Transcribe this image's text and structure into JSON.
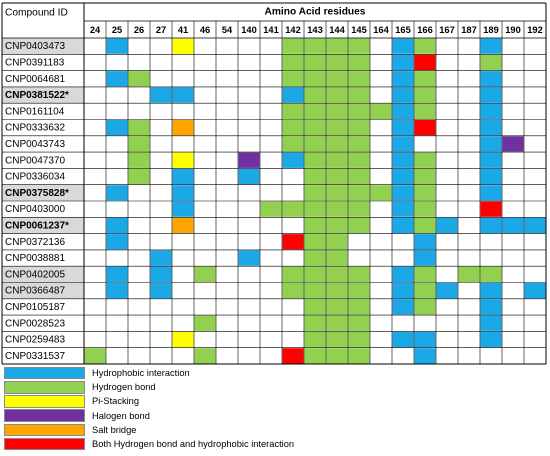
{
  "chart_data": {
    "type": "heatmap",
    "header": {
      "compound_col": "Compound ID",
      "residues_title": "Amino Acid residues"
    },
    "residues": [
      "24",
      "25",
      "26",
      "27",
      "41",
      "46",
      "54",
      "140",
      "141",
      "142",
      "143",
      "144",
      "145",
      "164",
      "165",
      "166",
      "167",
      "187",
      "189",
      "190",
      "192"
    ],
    "colors": {
      "H": "#1ba8e6",
      "G": "#92d050",
      "Y": "#ffff00",
      "P": "#7030a0",
      "O": "#ffa500",
      "R": "#ff0000"
    },
    "legend": [
      {
        "key": "H",
        "label": "Hydrophobic interaction"
      },
      {
        "key": "G",
        "label": "Hydrogen bond"
      },
      {
        "key": "Y",
        "label": "Pi-Stacking"
      },
      {
        "key": "P",
        "label": "Halogen bond"
      },
      {
        "key": "O",
        "label": "Salt bridge"
      },
      {
        "key": "R",
        "label": "Both Hydrogen bond and hydrophobic interaction"
      }
    ],
    "rows": [
      {
        "id": "CNP0403473",
        "bold": false,
        "shaded": true,
        "cells": [
          ".",
          "H",
          ".",
          ".",
          "Y",
          ".",
          ".",
          ".",
          ".",
          "G",
          "G",
          "G",
          "G",
          ".",
          "H",
          "G",
          ".",
          ".",
          "H",
          ".",
          "."
        ]
      },
      {
        "id": "CNP0391183",
        "bold": false,
        "shaded": false,
        "cells": [
          ".",
          ".",
          ".",
          ".",
          ".",
          ".",
          ".",
          ".",
          ".",
          "G",
          "G",
          "G",
          "G",
          ".",
          "H",
          "R",
          ".",
          ".",
          "G",
          ".",
          "."
        ]
      },
      {
        "id": "CNP0064681",
        "bold": false,
        "shaded": false,
        "cells": [
          ".",
          "H",
          "G",
          ".",
          ".",
          ".",
          ".",
          ".",
          ".",
          "G",
          "G",
          "G",
          "G",
          ".",
          "H",
          "G",
          ".",
          ".",
          "H",
          ".",
          "."
        ]
      },
      {
        "id": "CNP0381522*",
        "bold": true,
        "shaded": true,
        "cells": [
          ".",
          ".",
          ".",
          "H",
          "H",
          ".",
          ".",
          ".",
          ".",
          "H",
          "G",
          "G",
          "G",
          ".",
          "H",
          "G",
          ".",
          ".",
          "H",
          ".",
          "."
        ]
      },
      {
        "id": "CNP0161104",
        "bold": false,
        "shaded": false,
        "cells": [
          ".",
          ".",
          ".",
          ".",
          ".",
          ".",
          ".",
          ".",
          ".",
          "G",
          "G",
          "G",
          "G",
          "G",
          "H",
          "G",
          ".",
          ".",
          "H",
          ".",
          "."
        ]
      },
      {
        "id": "CNP0333632",
        "bold": false,
        "shaded": false,
        "cells": [
          ".",
          "H",
          "G",
          ".",
          "O",
          ".",
          ".",
          ".",
          ".",
          "G",
          "G",
          "G",
          "G",
          ".",
          "H",
          "R",
          ".",
          ".",
          "H",
          ".",
          "."
        ]
      },
      {
        "id": "CNP0043743",
        "bold": false,
        "shaded": false,
        "cells": [
          ".",
          ".",
          "G",
          ".",
          ".",
          ".",
          ".",
          ".",
          ".",
          "G",
          "G",
          "G",
          "G",
          ".",
          "H",
          ".",
          ".",
          ".",
          "H",
          "P",
          "."
        ]
      },
      {
        "id": "CNP0047370",
        "bold": false,
        "shaded": false,
        "cells": [
          ".",
          ".",
          "G",
          ".",
          "Y",
          ".",
          ".",
          "P",
          ".",
          "H",
          "G",
          "G",
          "G",
          ".",
          "H",
          "G",
          ".",
          ".",
          "H",
          ".",
          "."
        ]
      },
      {
        "id": "CNP0336034",
        "bold": false,
        "shaded": false,
        "cells": [
          ".",
          ".",
          "G",
          ".",
          "H",
          ".",
          ".",
          "H",
          ".",
          ".",
          "G",
          "G",
          "G",
          ".",
          "H",
          "G",
          ".",
          ".",
          "H",
          ".",
          "."
        ]
      },
      {
        "id": "CNP0375828*",
        "bold": true,
        "shaded": true,
        "cells": [
          ".",
          "H",
          ".",
          ".",
          "H",
          ".",
          ".",
          ".",
          ".",
          ".",
          "G",
          "G",
          "G",
          "G",
          "H",
          "G",
          ".",
          ".",
          "H",
          ".",
          "."
        ]
      },
      {
        "id": "CNP0403000",
        "bold": false,
        "shaded": false,
        "cells": [
          ".",
          ".",
          ".",
          ".",
          "H",
          ".",
          ".",
          ".",
          "G",
          "G",
          "G",
          "G",
          "G",
          ".",
          "H",
          "G",
          ".",
          ".",
          "R",
          ".",
          "."
        ]
      },
      {
        "id": "CNP0061237*",
        "bold": true,
        "shaded": true,
        "cells": [
          ".",
          "H",
          ".",
          ".",
          "O",
          ".",
          ".",
          ".",
          ".",
          ".",
          "G",
          "G",
          "G",
          ".",
          "H",
          "G",
          "H",
          ".",
          "H",
          "H",
          "H"
        ]
      },
      {
        "id": "CNP0372136",
        "bold": false,
        "shaded": false,
        "cells": [
          ".",
          "H",
          ".",
          ".",
          ".",
          ".",
          ".",
          ".",
          ".",
          "R",
          "G",
          "G",
          ".",
          ".",
          ".",
          "H",
          ".",
          ".",
          ".",
          ".",
          "."
        ]
      },
      {
        "id": "CNP0038881",
        "bold": false,
        "shaded": false,
        "cells": [
          ".",
          ".",
          ".",
          "H",
          ".",
          ".",
          ".",
          "H",
          ".",
          ".",
          "G",
          "G",
          ".",
          ".",
          ".",
          "H",
          ".",
          ".",
          ".",
          ".",
          "."
        ]
      },
      {
        "id": "CNP0402005",
        "bold": false,
        "shaded": true,
        "cells": [
          ".",
          "H",
          ".",
          "H",
          ".",
          "G",
          ".",
          ".",
          ".",
          "G",
          "G",
          "G",
          "G",
          ".",
          "H",
          "G",
          ".",
          "G",
          "G",
          ".",
          "."
        ]
      },
      {
        "id": "CNP0366487",
        "bold": false,
        "shaded": true,
        "cells": [
          ".",
          "H",
          ".",
          "H",
          ".",
          ".",
          ".",
          ".",
          ".",
          "G",
          "G",
          "G",
          "G",
          ".",
          "H",
          "G",
          "H",
          ".",
          "H",
          ".",
          "H"
        ]
      },
      {
        "id": "CNP0105187",
        "bold": false,
        "shaded": false,
        "cells": [
          ".",
          ".",
          ".",
          ".",
          ".",
          ".",
          ".",
          ".",
          ".",
          ".",
          "G",
          "G",
          "G",
          ".",
          "H",
          "G",
          ".",
          ".",
          "H",
          ".",
          "."
        ]
      },
      {
        "id": "CNP0028523",
        "bold": false,
        "shaded": false,
        "cells": [
          ".",
          ".",
          ".",
          ".",
          ".",
          "G",
          ".",
          ".",
          ".",
          ".",
          "G",
          "G",
          "G",
          ".",
          ".",
          ".",
          ".",
          ".",
          "H",
          ".",
          "."
        ]
      },
      {
        "id": "CNP0259483",
        "bold": false,
        "shaded": false,
        "cells": [
          ".",
          ".",
          ".",
          ".",
          "Y",
          ".",
          ".",
          ".",
          ".",
          ".",
          "G",
          "G",
          "G",
          ".",
          "H",
          "H",
          ".",
          ".",
          "H",
          ".",
          "."
        ]
      },
      {
        "id": "CNP0331537",
        "bold": false,
        "shaded": false,
        "cells": [
          "G",
          ".",
          ".",
          ".",
          ".",
          "G",
          ".",
          ".",
          ".",
          "R",
          "G",
          "G",
          "G",
          ".",
          ".",
          "H",
          ".",
          ".",
          ".",
          ".",
          "."
        ]
      }
    ]
  }
}
